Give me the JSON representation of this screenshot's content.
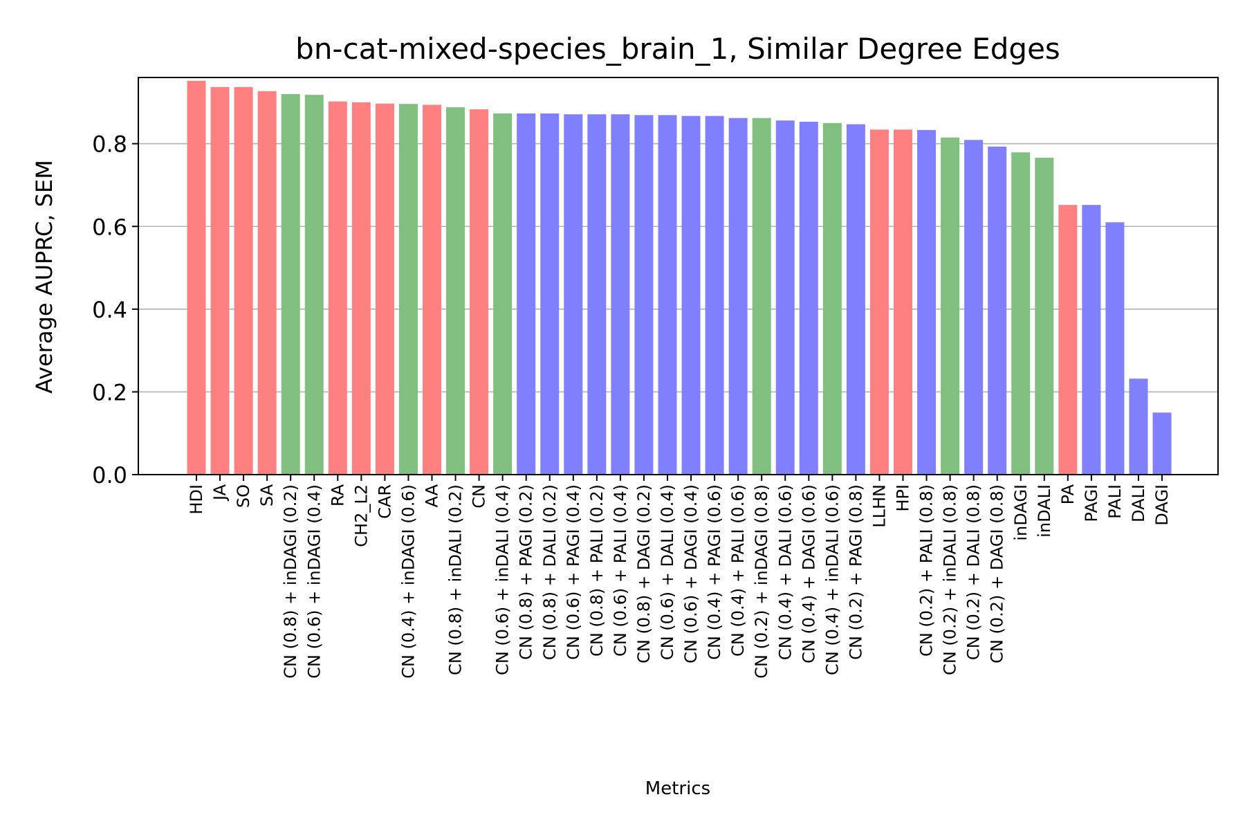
{
  "chart_data": {
    "type": "bar",
    "title": "bn-cat-mixed-species_brain_1, Similar Degree Edges",
    "xlabel": "Metrics",
    "ylabel": "Average AUPRC, SEM",
    "ylim": [
      0,
      0.96
    ],
    "yticks": [
      "0.0",
      "0.2",
      "0.4",
      "0.6",
      "0.8"
    ],
    "grid": "horizontal",
    "colors": {
      "red": "#ff8080",
      "green": "#80bf80",
      "blue": "#8080ff"
    },
    "categories": [
      "HDI",
      "JA",
      "SO",
      "SA",
      "CN (0.8) + inDAGI (0.2)",
      "CN (0.6) + inDAGI (0.4)",
      "RA",
      "CH2_L2",
      "CAR",
      "CN (0.4) + inDAGI (0.6)",
      "AA",
      "CN (0.8) + inDALI (0.2)",
      "CN",
      "CN (0.6) + inDALI (0.4)",
      "CN (0.8) + PAGI (0.2)",
      "CN (0.8) + DALI (0.2)",
      "CN (0.6) + PAGI (0.4)",
      "CN (0.8) + PALI (0.2)",
      "CN (0.6) + PALI (0.4)",
      "CN (0.8) + DAGI (0.2)",
      "CN (0.6) + DALI (0.4)",
      "CN (0.6) + DAGI (0.4)",
      "CN (0.4) + PAGI (0.6)",
      "CN (0.4) + PALI (0.6)",
      "CN (0.2) + inDAGI (0.8)",
      "CN (0.4) + DALI (0.6)",
      "CN (0.4) + DAGI (0.6)",
      "CN (0.4) + inDALI (0.6)",
      "CN (0.2) + PAGI (0.8)",
      "LLHN",
      "HPI",
      "CN (0.2) + PALI (0.8)",
      "CN (0.2) + inDALI (0.8)",
      "CN (0.2) + DALI (0.8)",
      "CN (0.2) + DAGI (0.8)",
      "inDAGI",
      "inDALI",
      "PA",
      "PAGI",
      "PALI",
      "DALI",
      "DAGI"
    ],
    "values": [
      0.952,
      0.937,
      0.937,
      0.927,
      0.92,
      0.918,
      0.902,
      0.9,
      0.897,
      0.896,
      0.894,
      0.888,
      0.883,
      0.873,
      0.873,
      0.873,
      0.871,
      0.871,
      0.871,
      0.869,
      0.869,
      0.867,
      0.867,
      0.862,
      0.862,
      0.856,
      0.853,
      0.85,
      0.847,
      0.834,
      0.834,
      0.833,
      0.815,
      0.809,
      0.793,
      0.779,
      0.766,
      0.652,
      0.652,
      0.61,
      0.232,
      0.15
    ],
    "bar_colors": [
      "red",
      "red",
      "red",
      "red",
      "green",
      "green",
      "red",
      "red",
      "red",
      "green",
      "red",
      "green",
      "red",
      "green",
      "blue",
      "blue",
      "blue",
      "blue",
      "blue",
      "blue",
      "blue",
      "blue",
      "blue",
      "blue",
      "green",
      "blue",
      "blue",
      "green",
      "blue",
      "red",
      "red",
      "blue",
      "green",
      "blue",
      "blue",
      "green",
      "green",
      "red",
      "blue",
      "blue",
      "blue",
      "blue"
    ]
  }
}
